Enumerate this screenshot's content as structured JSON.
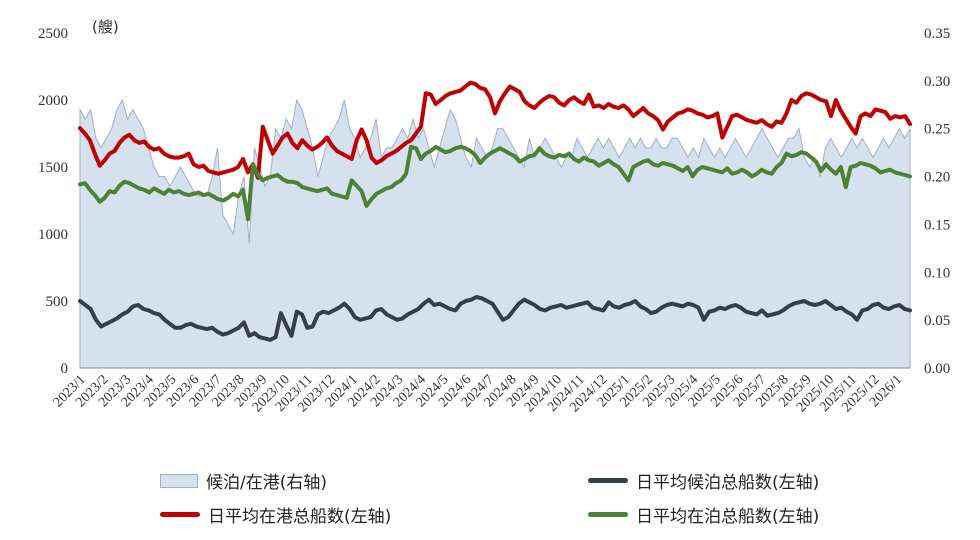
{
  "chart_data": {
    "type": "line",
    "unit_label": "(艘)",
    "left_axis": {
      "ylim": [
        0,
        2500
      ],
      "ticks": [
        "0",
        "500",
        "1000",
        "1500",
        "2000",
        "2500"
      ]
    },
    "right_axis": {
      "ylim": [
        0,
        0.35
      ],
      "ticks": [
        "0.00",
        "0.05",
        "0.10",
        "0.15",
        "0.20",
        "0.25",
        "0.30",
        "0.35"
      ]
    },
    "x_ticks": [
      "2023/1",
      "2023/2",
      "2023/3",
      "2023/4",
      "2023/5",
      "2023/6",
      "2023/7",
      "2023/8",
      "2023/9",
      "2023/10",
      "2023/11",
      "2023/12",
      "2024/1",
      "2024/2",
      "2024/3",
      "2024/4",
      "2024/5",
      "2024/6",
      "2024/7",
      "2024/8",
      "2024/9",
      "2024/10",
      "2024/11",
      "2024/12",
      "2025/1",
      "2025/2",
      "2025/3",
      "2025/4",
      "2025/5",
      "2025/6",
      "2025/7",
      "2025/8",
      "2025/9",
      "2025/10",
      "2025/11",
      "2025/12",
      "2026/1"
    ],
    "series": [
      {
        "name": "候泊/在港(右轴)",
        "axis": "right",
        "style": "area",
        "color": "#d6e1ef",
        "values": [
          0.27,
          0.26,
          0.27,
          0.24,
          0.23,
          0.24,
          0.25,
          0.27,
          0.28,
          0.26,
          0.27,
          0.26,
          0.25,
          0.23,
          0.21,
          0.2,
          0.2,
          0.19,
          0.2,
          0.21,
          0.2,
          0.19,
          0.18,
          0.18,
          0.18,
          0.2,
          0.23,
          0.16,
          0.15,
          0.14,
          0.18,
          0.2,
          0.13,
          0.23,
          0.21,
          0.19,
          0.2,
          0.25,
          0.24,
          0.26,
          0.25,
          0.28,
          0.27,
          0.25,
          0.23,
          0.2,
          0.22,
          0.24,
          0.25,
          0.26,
          0.28,
          0.25,
          0.24,
          0.22,
          0.23,
          0.24,
          0.26,
          0.22,
          0.23,
          0.23,
          0.24,
          0.25,
          0.24,
          0.26,
          0.24,
          0.25,
          0.23,
          0.21,
          0.23,
          0.25,
          0.27,
          0.26,
          0.24,
          0.22,
          0.21,
          0.24,
          0.23,
          0.22,
          0.23,
          0.25,
          0.25,
          0.24,
          0.23,
          0.22,
          0.21,
          0.24,
          0.22,
          0.23,
          0.24,
          0.23,
          0.22,
          0.21,
          0.22,
          0.22,
          0.24,
          0.23,
          0.22,
          0.23,
          0.24,
          0.23,
          0.24,
          0.23,
          0.22,
          0.23,
          0.24,
          0.23,
          0.24,
          0.23,
          0.23,
          0.24,
          0.23,
          0.23,
          0.24,
          0.24,
          0.23,
          0.22,
          0.23,
          0.22,
          0.24,
          0.23,
          0.22,
          0.23,
          0.22,
          0.23,
          0.24,
          0.23,
          0.22,
          0.23,
          0.24,
          0.25,
          0.24,
          0.23,
          0.22,
          0.23,
          0.24,
          0.24,
          0.25,
          0.22,
          0.21,
          0.22,
          0.2,
          0.23,
          0.24,
          0.23,
          0.22,
          0.23,
          0.24,
          0.23,
          0.24,
          0.23,
          0.22,
          0.23,
          0.24,
          0.23,
          0.24,
          0.25,
          0.24,
          0.25
        ]
      },
      {
        "name": "日平均在港总船数(左轴)",
        "axis": "left",
        "style": "line",
        "color": "#c00000",
        "values": [
          1790,
          1750,
          1700,
          1600,
          1510,
          1550,
          1600,
          1620,
          1680,
          1720,
          1740,
          1700,
          1680,
          1690,
          1650,
          1630,
          1640,
          1600,
          1580,
          1570,
          1570,
          1580,
          1600,
          1520,
          1500,
          1510,
          1470,
          1460,
          1450,
          1460,
          1470,
          1480,
          1500,
          1560,
          1460,
          1520,
          1420,
          1800,
          1700,
          1600,
          1660,
          1720,
          1750,
          1680,
          1640,
          1700,
          1660,
          1630,
          1650,
          1680,
          1720,
          1660,
          1620,
          1600,
          1580,
          1560,
          1700,
          1780,
          1700,
          1570,
          1530,
          1550,
          1580,
          1600,
          1620,
          1650,
          1680,
          1700,
          1750,
          1800,
          2050,
          2040,
          1970,
          2000,
          2030,
          2050,
          2060,
          2070,
          2100,
          2130,
          2120,
          2090,
          2080,
          2020,
          1900,
          1990,
          2050,
          2100,
          2080,
          2060,
          1990,
          1960,
          1940,
          1980,
          2010,
          2030,
          2020,
          1980,
          1960,
          2000,
          2020,
          1990,
          1970,
          2040,
          1950,
          1960,
          1940,
          1970,
          1950,
          1940,
          1960,
          1930,
          1880,
          1910,
          1940,
          1900,
          1880,
          1850,
          1780,
          1840,
          1870,
          1900,
          1910,
          1930,
          1920,
          1900,
          1890,
          1870,
          1880,
          1900,
          1720,
          1800,
          1880,
          1890,
          1870,
          1850,
          1840,
          1830,
          1850,
          1820,
          1800,
          1840,
          1830,
          1900,
          2000,
          1980,
          2030,
          2050,
          2040,
          2020,
          2000,
          1990,
          1880,
          2000,
          1920,
          1860,
          1800,
          1750,
          1880,
          1900,
          1880,
          1930,
          1920,
          1910,
          1860,
          1880,
          1870,
          1880,
          1820
        ]
      },
      {
        "name": "日平均在泊总船数(左轴)",
        "axis": "left",
        "style": "line",
        "color": "#4d8134",
        "values": [
          1370,
          1380,
          1330,
          1290,
          1240,
          1270,
          1320,
          1310,
          1360,
          1390,
          1380,
          1360,
          1340,
          1330,
          1310,
          1340,
          1320,
          1300,
          1330,
          1310,
          1320,
          1300,
          1290,
          1300,
          1310,
          1290,
          1300,
          1280,
          1260,
          1250,
          1270,
          1300,
          1280,
          1330,
          1110,
          1520,
          1440,
          1400,
          1420,
          1430,
          1440,
          1410,
          1390,
          1390,
          1380,
          1350,
          1340,
          1330,
          1320,
          1330,
          1340,
          1300,
          1290,
          1280,
          1270,
          1400,
          1360,
          1320,
          1210,
          1260,
          1300,
          1320,
          1340,
          1350,
          1380,
          1400,
          1450,
          1650,
          1640,
          1560,
          1600,
          1620,
          1650,
          1630,
          1610,
          1620,
          1640,
          1650,
          1640,
          1620,
          1590,
          1530,
          1570,
          1600,
          1620,
          1640,
          1620,
          1600,
          1580,
          1540,
          1560,
          1580,
          1590,
          1640,
          1600,
          1580,
          1570,
          1590,
          1580,
          1600,
          1560,
          1540,
          1570,
          1550,
          1540,
          1510,
          1530,
          1550,
          1520,
          1500,
          1450,
          1400,
          1500,
          1520,
          1540,
          1550,
          1520,
          1510,
          1530,
          1520,
          1510,
          1490,
          1470,
          1500,
          1430,
          1480,
          1500,
          1490,
          1480,
          1470,
          1460,
          1490,
          1450,
          1460,
          1480,
          1460,
          1430,
          1450,
          1480,
          1460,
          1450,
          1500,
          1530,
          1600,
          1580,
          1590,
          1610,
          1600,
          1570,
          1540,
          1470,
          1520,
          1480,
          1450,
          1500,
          1350,
          1500,
          1510,
          1530,
          1520,
          1510,
          1490,
          1460,
          1470,
          1480,
          1460,
          1450,
          1440,
          1430
        ]
      },
      {
        "name": "日平均候泊总船数(左轴)",
        "axis": "left",
        "style": "line",
        "color": "#353f4a",
        "values": [
          500,
          470,
          440,
          360,
          310,
          330,
          350,
          370,
          400,
          420,
          460,
          470,
          440,
          430,
          410,
          400,
          360,
          330,
          300,
          300,
          320,
          330,
          310,
          300,
          290,
          300,
          270,
          250,
          260,
          280,
          300,
          340,
          240,
          260,
          230,
          220,
          210,
          230,
          410,
          320,
          240,
          420,
          400,
          300,
          310,
          400,
          420,
          410,
          430,
          450,
          480,
          440,
          380,
          360,
          370,
          380,
          430,
          440,
          400,
          380,
          360,
          370,
          400,
          420,
          440,
          480,
          510,
          470,
          480,
          460,
          440,
          430,
          480,
          500,
          510,
          530,
          520,
          500,
          480,
          420,
          360,
          380,
          430,
          480,
          510,
          490,
          470,
          440,
          430,
          450,
          460,
          470,
          450,
          460,
          470,
          480,
          490,
          450,
          440,
          430,
          490,
          460,
          450,
          470,
          480,
          500,
          460,
          440,
          410,
          420,
          450,
          470,
          480,
          470,
          460,
          480,
          470,
          450,
          360,
          420,
          430,
          450,
          440,
          460,
          470,
          450,
          420,
          410,
          400,
          430,
          390,
          400,
          410,
          430,
          460,
          480,
          490,
          500,
          480,
          470,
          480,
          500,
          470,
          440,
          450,
          420,
          400,
          360,
          430,
          440,
          470,
          480,
          450,
          440,
          460,
          470,
          440,
          430
        ]
      }
    ],
    "legend": {
      "area": "候泊/在港(右轴)",
      "dark": "日平均候泊总船数(左轴)",
      "red": "日平均在港总船数(左轴)",
      "green": "日平均在泊总船数(左轴)"
    }
  }
}
